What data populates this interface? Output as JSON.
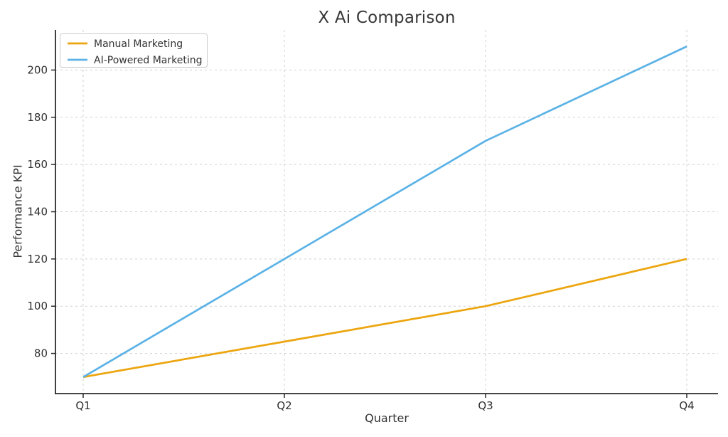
{
  "chart_data": {
    "type": "line",
    "title": "X Ai Comparison",
    "xlabel": "Quarter",
    "ylabel": "Performance KPI",
    "categories": [
      "Q1",
      "Q2",
      "Q3",
      "Q4"
    ],
    "series": [
      {
        "name": "Manual Marketing",
        "color": "#ECA50E",
        "values": [
          70,
          85,
          100,
          120
        ]
      },
      {
        "name": "AI-Powered Marketing",
        "color": "#5BB2E6",
        "values": [
          70,
          120,
          170,
          210
        ]
      }
    ],
    "yticks": [
      80,
      100,
      120,
      140,
      160,
      180,
      200
    ],
    "ylim": [
      63,
      217
    ],
    "grid": true,
    "grid_style": "dashed",
    "legend_position": "upper-left",
    "colors": {
      "text": "#303030",
      "spine": "#2B2B2B",
      "grid": "#D0D0D0",
      "background": "#FFFFFF",
      "legend_border": "#CCCCCC"
    }
  }
}
